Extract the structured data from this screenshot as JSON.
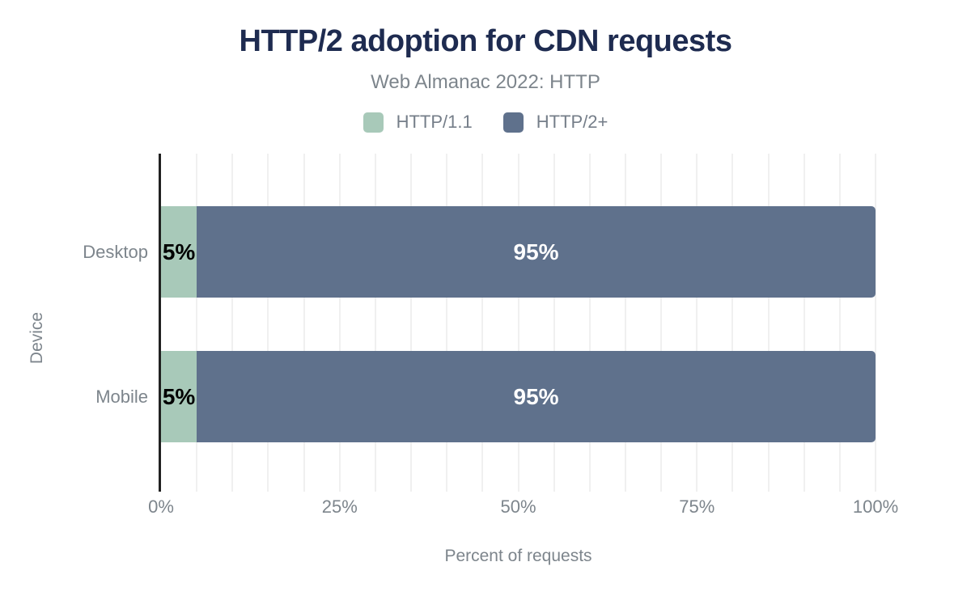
{
  "chart_data": {
    "type": "bar",
    "orientation": "horizontal",
    "stacked": true,
    "title": "HTTP/2 adoption for CDN requests",
    "subtitle": "Web Almanac 2022: HTTP",
    "categories": [
      "Desktop",
      "Mobile"
    ],
    "series": [
      {
        "name": "HTTP/1.1",
        "color": "#a8c9b9",
        "values": [
          5,
          5
        ],
        "data_labels": [
          "5%",
          "5%"
        ],
        "data_label_color": "#000000"
      },
      {
        "name": "HTTP/2+",
        "color": "#5f718c",
        "values": [
          95,
          95
        ],
        "data_labels": [
          "95%",
          "95%"
        ],
        "data_label_color": "#ffffff"
      }
    ],
    "xlabel": "Percent of requests",
    "ylabel": "Device",
    "xlim": [
      0,
      100
    ],
    "x_ticks": [
      "0%",
      "25%",
      "50%",
      "75%",
      "100%"
    ],
    "x_tick_values": [
      0,
      25,
      50,
      75,
      100
    ],
    "gridline_step": 5,
    "grid": "vertical",
    "legend_position": "top"
  },
  "colors": {
    "title": "#1e2b50",
    "text_gray": "#7d858c",
    "gridline": "#f0f0f0",
    "axis_line": "#212121",
    "background": "#ffffff"
  }
}
